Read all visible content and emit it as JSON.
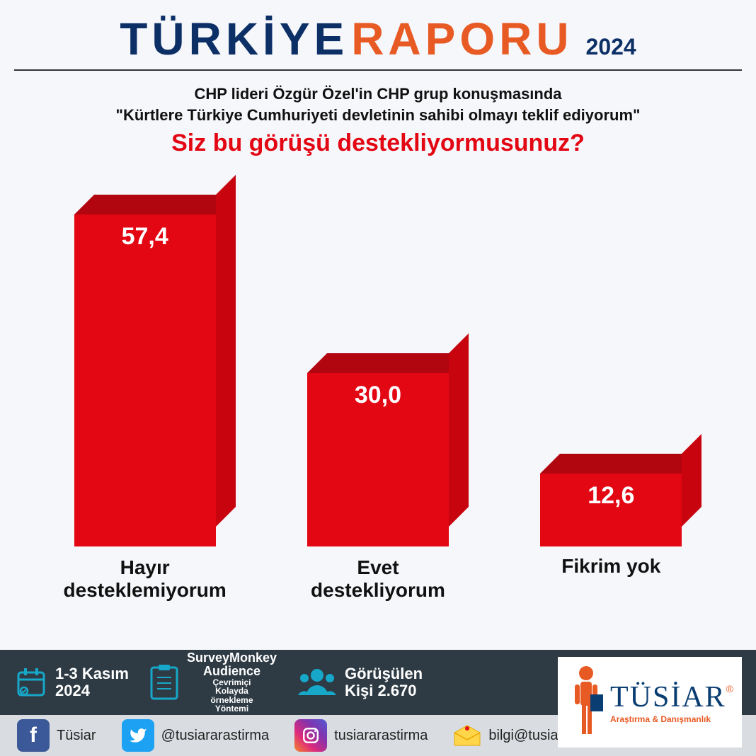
{
  "header": {
    "word1": "TÜRKİYE",
    "word1_color": "#0c2f66",
    "word2": "RAPORU",
    "word2_color": "#e85a24",
    "year": "2024",
    "year_color": "#0c2f66"
  },
  "question": {
    "context_line1": "CHP lideri Özgür Özel'in CHP grup konuşmasında",
    "context_line2": "\"Kürtlere Türkiye Cumhuriyeti devletinin sahibi olmayı teklif ediyorum\"",
    "context_color": "#111111",
    "main": "Siz bu görüşü destekliyormusunuz?",
    "main_color": "#e30613"
  },
  "chart": {
    "type": "bar-3d",
    "max_value": 60,
    "bar_front_color": "#e30613",
    "bar_top_color": "#b10510",
    "bar_side_color": "#c8050f",
    "value_color": "#ffffff",
    "value_fontsize": 34,
    "label_color": "#111111",
    "label_fontsize": 28,
    "bars": [
      {
        "value_text": "57,4",
        "value": 57.4,
        "label_line1": "Hayır",
        "label_line2": "desteklemiyorum"
      },
      {
        "value_text": "30,0",
        "value": 30.0,
        "label_line1": "Evet",
        "label_line2": "destekliyorum"
      },
      {
        "value_text": "12,6",
        "value": 12.6,
        "label_line1": "Fikrim yok",
        "label_line2": ""
      }
    ]
  },
  "footer": {
    "top_bg": "#2e3b44",
    "bot_bg": "#d9dde1",
    "accent": "#17a7c9",
    "date": "1-3 Kasım 2024",
    "method_title": "SurveyMonkey Audience",
    "method_sub": "Çevrimiçi Kolayda örnekleme Yöntemi",
    "sample_label": "Görüşülen",
    "sample_value": "Kişi 2.670",
    "social": {
      "facebook": "Tüsiar",
      "twitter": "@tusiararastirma",
      "instagram": "tusiararastirma",
      "email": "bilgi@tusiar.com"
    },
    "logo": {
      "name": "TÜSİAR",
      "tagline": "Araştırma & Danışmanlık",
      "name_color": "#0a3e72",
      "tagline_color": "#e85a24",
      "figure_color": "#e85a24",
      "reg_mark": "®"
    }
  }
}
